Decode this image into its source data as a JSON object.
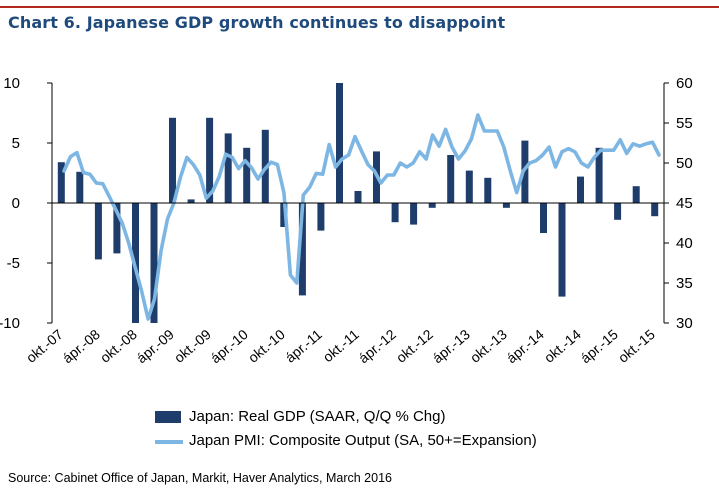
{
  "title": "Chart 6. Japanese GDP growth continues to disappoint",
  "source": "Source: Cabinet Office of Japan, Markit, Haver Analytics, March 2016",
  "colors": {
    "bar": "#1f3d6b",
    "line": "#7db6e3",
    "rule": "#b22a1e",
    "title": "#1f4a7c"
  },
  "chart_data": {
    "type": "bar+line",
    "x_tick_labels": [
      "okt.-07",
      "ápr.-08",
      "okt.-08",
      "ápr.-09",
      "okt.-09",
      "ápr.-10",
      "okt.-10",
      "ápr.-11",
      "okt.-11",
      "ápr.-12",
      "okt.-12",
      "ápr.-13",
      "okt.-13",
      "ápr.-14",
      "okt.-14",
      "ápr.-15",
      "okt.-15"
    ],
    "left_axis": {
      "ylim": [
        -10,
        10
      ],
      "ticks": [
        "10",
        "5",
        "0",
        "-5",
        "-10"
      ]
    },
    "right_axis": {
      "ylim": [
        30,
        60
      ],
      "ticks": [
        "60",
        "55",
        "50",
        "45",
        "40",
        "35",
        "30"
      ]
    },
    "series": [
      {
        "name": "Japan: Real GDP (SAAR, Q/Q % Chg)",
        "type": "bar",
        "axis": "left",
        "values": [
          3.4,
          2.6,
          -4.7,
          -4.2,
          -10.5,
          -10.5,
          7.1,
          0.3,
          7.1,
          5.8,
          4.6,
          6.1,
          -2.0,
          -7.7,
          -2.3,
          10.0,
          1.0,
          4.3,
          -1.6,
          -1.8,
          -0.4,
          4.0,
          2.7,
          2.1,
          -0.4,
          5.2,
          -2.5,
          -7.8,
          2.2,
          4.6,
          -1.4,
          1.4,
          -1.1
        ]
      },
      {
        "name": "Japan PMI: Composite Output (SA, 50+=Expansion)",
        "type": "line",
        "axis": "right",
        "values": [
          49.0,
          50.8,
          51.3,
          48.8,
          48.6,
          47.5,
          47.4,
          45.8,
          44.2,
          42.5,
          40.0,
          37.0,
          34.0,
          30.5,
          33.0,
          39.0,
          43.0,
          45.0,
          48.2,
          50.7,
          49.8,
          48.5,
          45.6,
          46.5,
          48.3,
          51.1,
          50.7,
          49.3,
          50.3,
          49.4,
          48.0,
          49.2,
          50.1,
          49.8,
          46.3,
          36.0,
          35.0,
          46.0,
          47.0,
          48.7,
          48.6,
          52.3,
          49.5,
          50.5,
          51.0,
          53.3,
          51.5,
          49.8,
          49.0,
          47.5,
          48.5,
          48.5,
          50.0,
          49.5,
          50.0,
          51.4,
          50.5,
          53.5,
          52.1,
          54.2,
          52.0,
          50.5,
          51.5,
          53.0,
          56.0,
          54.0,
          54.0,
          54.0,
          52.0,
          49.0,
          46.3,
          49.0,
          50.0,
          50.3,
          51.0,
          52.0,
          49.5,
          51.4,
          51.8,
          51.4,
          50.0,
          49.5,
          50.7,
          51.6,
          51.6,
          51.6,
          52.9,
          51.2,
          52.4,
          52.1,
          52.4,
          52.6,
          51.0
        ]
      }
    ],
    "legend_position": "bottom",
    "grid": false
  }
}
